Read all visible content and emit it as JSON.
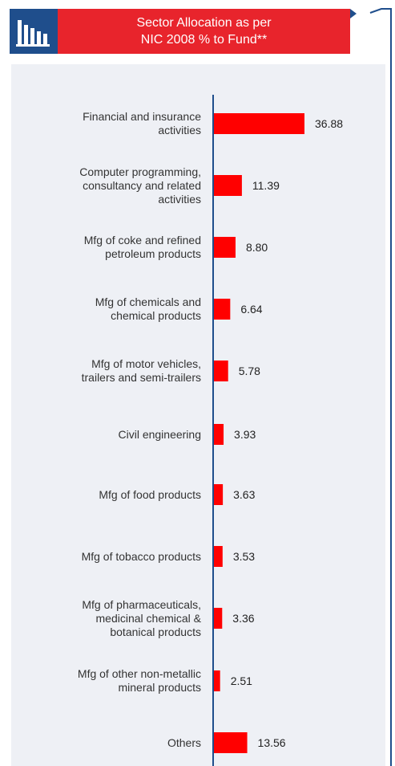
{
  "header": {
    "title_line1": "Sector Allocation as per",
    "title_line2": "NIC 2008 % to Fund**",
    "icon": "bar-chart-icon"
  },
  "colors": {
    "bar": "#ff0000",
    "banner": "#e8242c",
    "brand_blue": "#1f4e8c",
    "panel": "#eef0f5"
  },
  "chart_data": {
    "type": "bar",
    "orientation": "horizontal",
    "categories": [
      "Financial and insurance activities",
      "Computer programming, consultancy and related activities",
      "Mfg of coke and refined petroleum products",
      "Mfg of chemicals and chemical products",
      "Mfg of motor vehicles, trailers and semi-trailers",
      "Civil engineering",
      "Mfg of food products",
      "Mfg of tobacco products",
      "Mfg of pharmaceuticals, medicinal chemical & botanical products",
      "Mfg of other non-metallic mineral products",
      "Others"
    ],
    "values": [
      36.88,
      11.39,
      8.8,
      6.64,
      5.78,
      3.93,
      3.63,
      3.53,
      3.36,
      2.51,
      13.56
    ],
    "value_labels": [
      "36.88",
      "11.39",
      "8.80",
      "6.64",
      "5.78",
      "3.93",
      "3.63",
      "3.53",
      "3.36",
      "2.51",
      "13.56"
    ],
    "label_lines": [
      [
        "Financial and insurance",
        "activities"
      ],
      [
        "Computer programming,",
        "consultancy and related",
        "activities"
      ],
      [
        "Mfg of coke and refined",
        "petroleum products"
      ],
      [
        "Mfg of chemicals and",
        "chemical products"
      ],
      [
        "Mfg of motor vehicles,",
        "trailers and semi-trailers"
      ],
      [
        "Civil engineering"
      ],
      [
        "Mfg of food products"
      ],
      [
        "Mfg of tobacco products"
      ],
      [
        "Mfg of pharmaceuticals,",
        "medicinal chemical &",
        "botanical products"
      ],
      [
        "Mfg of other non-metallic",
        "mineral products"
      ],
      [
        "Others"
      ]
    ],
    "xlim": [
      0,
      40
    ],
    "title": "Sector Allocation as per NIC 2008 % to Fund**",
    "xlabel": "",
    "ylabel": "",
    "grid": false,
    "legend": "none"
  }
}
